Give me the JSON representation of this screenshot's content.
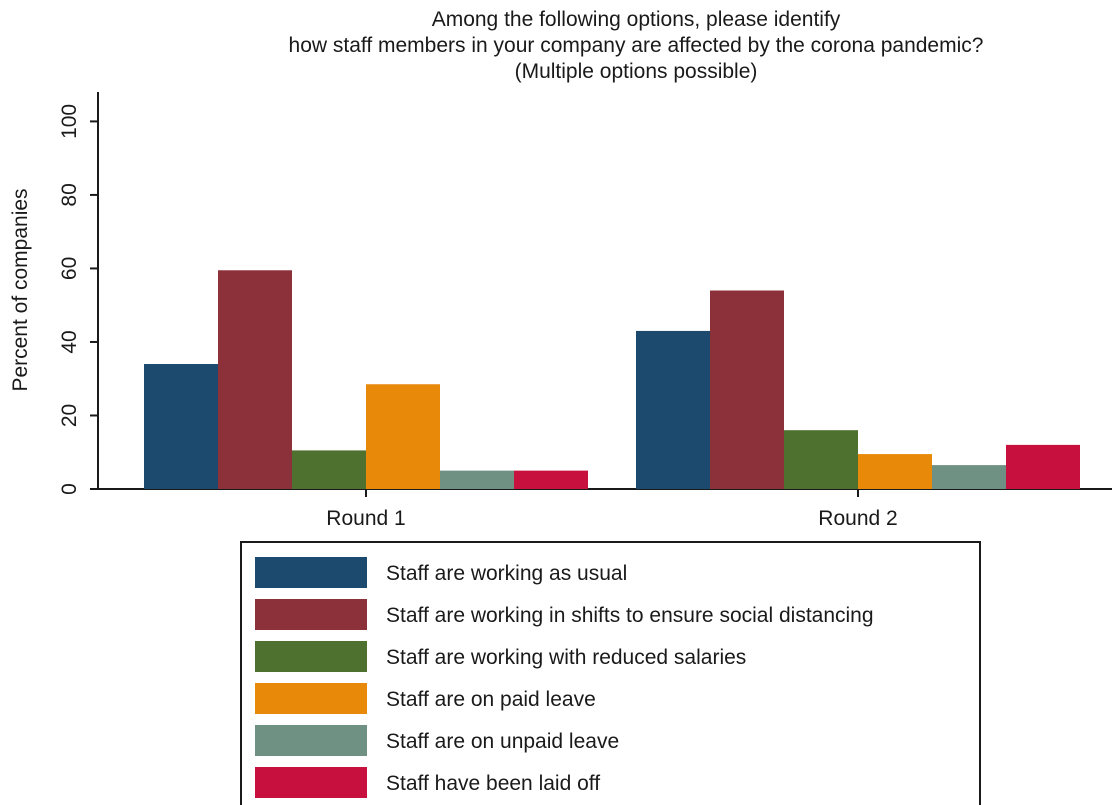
{
  "chart_data": {
    "type": "bar",
    "title": [
      "Among the following options, please identify",
      "how staff members in your company are affected by the corona pandemic?",
      "(Multiple options possible)"
    ],
    "xlabel": "",
    "ylabel": "Percent of companies",
    "ylim": [
      0,
      108
    ],
    "yticks": [
      0,
      20,
      40,
      60,
      80,
      100
    ],
    "categories": [
      "Round 1",
      "Round 2"
    ],
    "series": [
      {
        "name": "Staff are working as usual",
        "color": "#1b4a6e",
        "values": [
          34,
          43
        ]
      },
      {
        "name": "Staff are working in shifts to ensure social distancing",
        "color": "#8c3039",
        "values": [
          59.5,
          54
        ]
      },
      {
        "name": "Staff are working with reduced salaries",
        "color": "#4e7130",
        "values": [
          10.5,
          16
        ]
      },
      {
        "name": "Staff are on paid leave",
        "color": "#e8890a",
        "values": [
          28.5,
          9.5
        ]
      },
      {
        "name": "Staff are on unpaid leave",
        "color": "#6e9183",
        "values": [
          5,
          6.5
        ]
      },
      {
        "name": "Staff have been laid off",
        "color": "#c8103e",
        "values": [
          5,
          12
        ]
      }
    ],
    "grid": false,
    "legend_position": "bottom"
  }
}
